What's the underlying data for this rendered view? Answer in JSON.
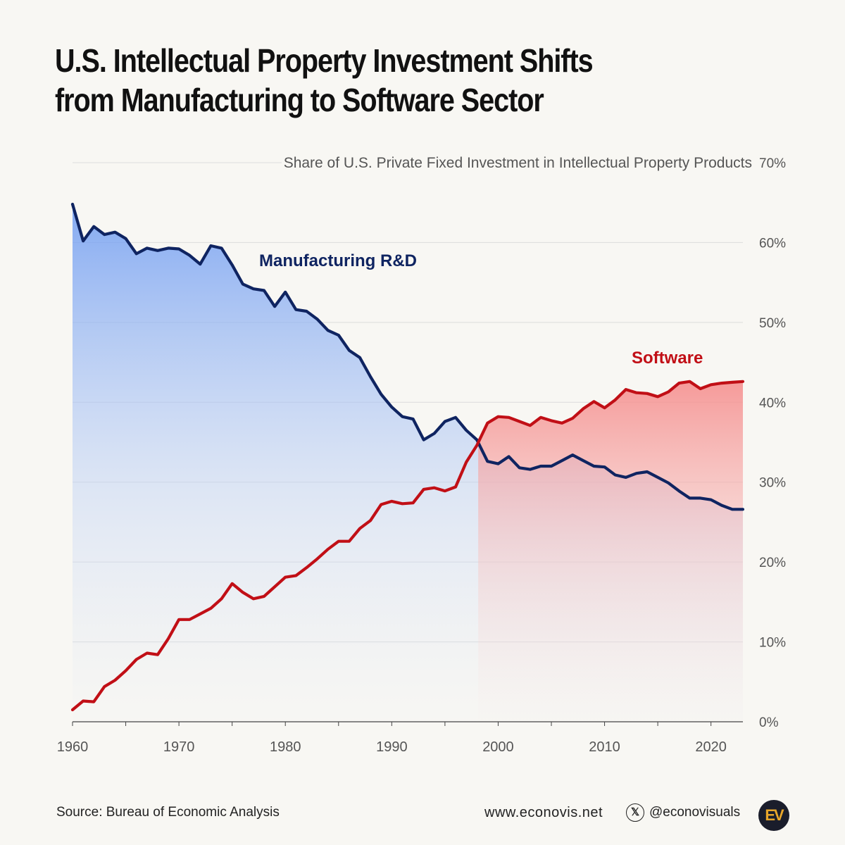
{
  "title": {
    "line1": "U.S. Intellectual Property Investment Shifts",
    "line2": "from Manufacturing to Software Sector"
  },
  "footer": {
    "source": "Source: Bureau of Economic Analysis",
    "website": "www.econovis.net",
    "social_icon": "x-icon",
    "handle": "@econovisuals",
    "logo_text": "EV"
  },
  "colors": {
    "manufacturing": "#0f2461",
    "software": "#c10f16",
    "grid": "#dcdcdc",
    "text_muted": "#555555"
  },
  "chart_data": {
    "type": "line",
    "subtitle": "Share of U.S. Private Fixed Investment in Intellectual Property Products",
    "x_ticks": [
      1960,
      1970,
      1980,
      1990,
      2000,
      2010,
      2020
    ],
    "y_ticks": [
      "0%",
      "10%",
      "20%",
      "30%",
      "40%",
      "50%",
      "60%",
      "70%"
    ],
    "xlim": [
      1960,
      2023
    ],
    "ylim": [
      0,
      70
    ],
    "y_axis_position": "right",
    "grid": true,
    "series": [
      {
        "name": "Manufacturing R&D",
        "x": [
          1960,
          1961,
          1962,
          1963,
          1964,
          1965,
          1966,
          1967,
          1968,
          1969,
          1970,
          1971,
          1972,
          1973,
          1974,
          1975,
          1976,
          1977,
          1978,
          1979,
          1980,
          1981,
          1982,
          1983,
          1984,
          1985,
          1986,
          1987,
          1988,
          1989,
          1990,
          1991,
          1992,
          1993,
          1994,
          1995,
          1996,
          1997,
          1998,
          1999,
          2000,
          2001,
          2002,
          2003,
          2004,
          2005,
          2006,
          2007,
          2008,
          2009,
          2010,
          2011,
          2012,
          2013,
          2014,
          2015,
          2016,
          2017,
          2018,
          2019,
          2020,
          2021,
          2022,
          2023
        ],
        "values": [
          64.8,
          60.2,
          62.0,
          61.0,
          61.3,
          60.5,
          58.6,
          59.3,
          59.0,
          59.3,
          59.2,
          58.4,
          57.3,
          59.6,
          59.3,
          57.2,
          54.8,
          54.2,
          54.0,
          52.0,
          53.8,
          51.6,
          51.4,
          50.4,
          49.0,
          48.4,
          46.5,
          45.6,
          43.2,
          41.0,
          39.4,
          38.2,
          37.9,
          35.3,
          36.1,
          37.6,
          38.1,
          36.5,
          35.3,
          32.6,
          32.3,
          33.2,
          31.8,
          31.6,
          32.0,
          32.0,
          32.7,
          33.4,
          32.7,
          32.0,
          31.9,
          30.9,
          30.6,
          31.1,
          31.3,
          30.6,
          29.9,
          28.9,
          28.0,
          28.0,
          27.8,
          27.1,
          26.6,
          26.6
        ]
      },
      {
        "name": "Software",
        "x": [
          1960,
          1961,
          1962,
          1963,
          1964,
          1965,
          1966,
          1967,
          1968,
          1969,
          1970,
          1971,
          1972,
          1973,
          1974,
          1975,
          1976,
          1977,
          1978,
          1979,
          1980,
          1981,
          1982,
          1983,
          1984,
          1985,
          1986,
          1987,
          1988,
          1989,
          1990,
          1991,
          1992,
          1993,
          1994,
          1995,
          1996,
          1997,
          1998,
          1999,
          2000,
          2001,
          2002,
          2003,
          2004,
          2005,
          2006,
          2007,
          2008,
          2009,
          2010,
          2011,
          2012,
          2013,
          2014,
          2015,
          2016,
          2017,
          2018,
          2019,
          2020,
          2021,
          2022,
          2023
        ],
        "values": [
          1.5,
          2.6,
          2.5,
          4.4,
          5.2,
          6.4,
          7.8,
          8.6,
          8.4,
          10.4,
          12.8,
          12.8,
          13.5,
          14.2,
          15.4,
          17.3,
          16.2,
          15.4,
          15.7,
          16.9,
          18.1,
          18.3,
          19.3,
          20.4,
          21.6,
          22.6,
          22.6,
          24.2,
          25.2,
          27.2,
          27.6,
          27.3,
          27.4,
          29.1,
          29.3,
          28.9,
          29.4,
          32.5,
          34.6,
          37.4,
          38.2,
          38.1,
          37.6,
          37.1,
          38.1,
          37.7,
          37.4,
          38.0,
          39.2,
          40.1,
          39.3,
          40.3,
          41.6,
          41.2,
          41.1,
          40.7,
          41.3,
          42.4,
          42.6,
          41.7,
          42.2,
          42.4,
          42.5,
          42.6
        ]
      }
    ]
  }
}
